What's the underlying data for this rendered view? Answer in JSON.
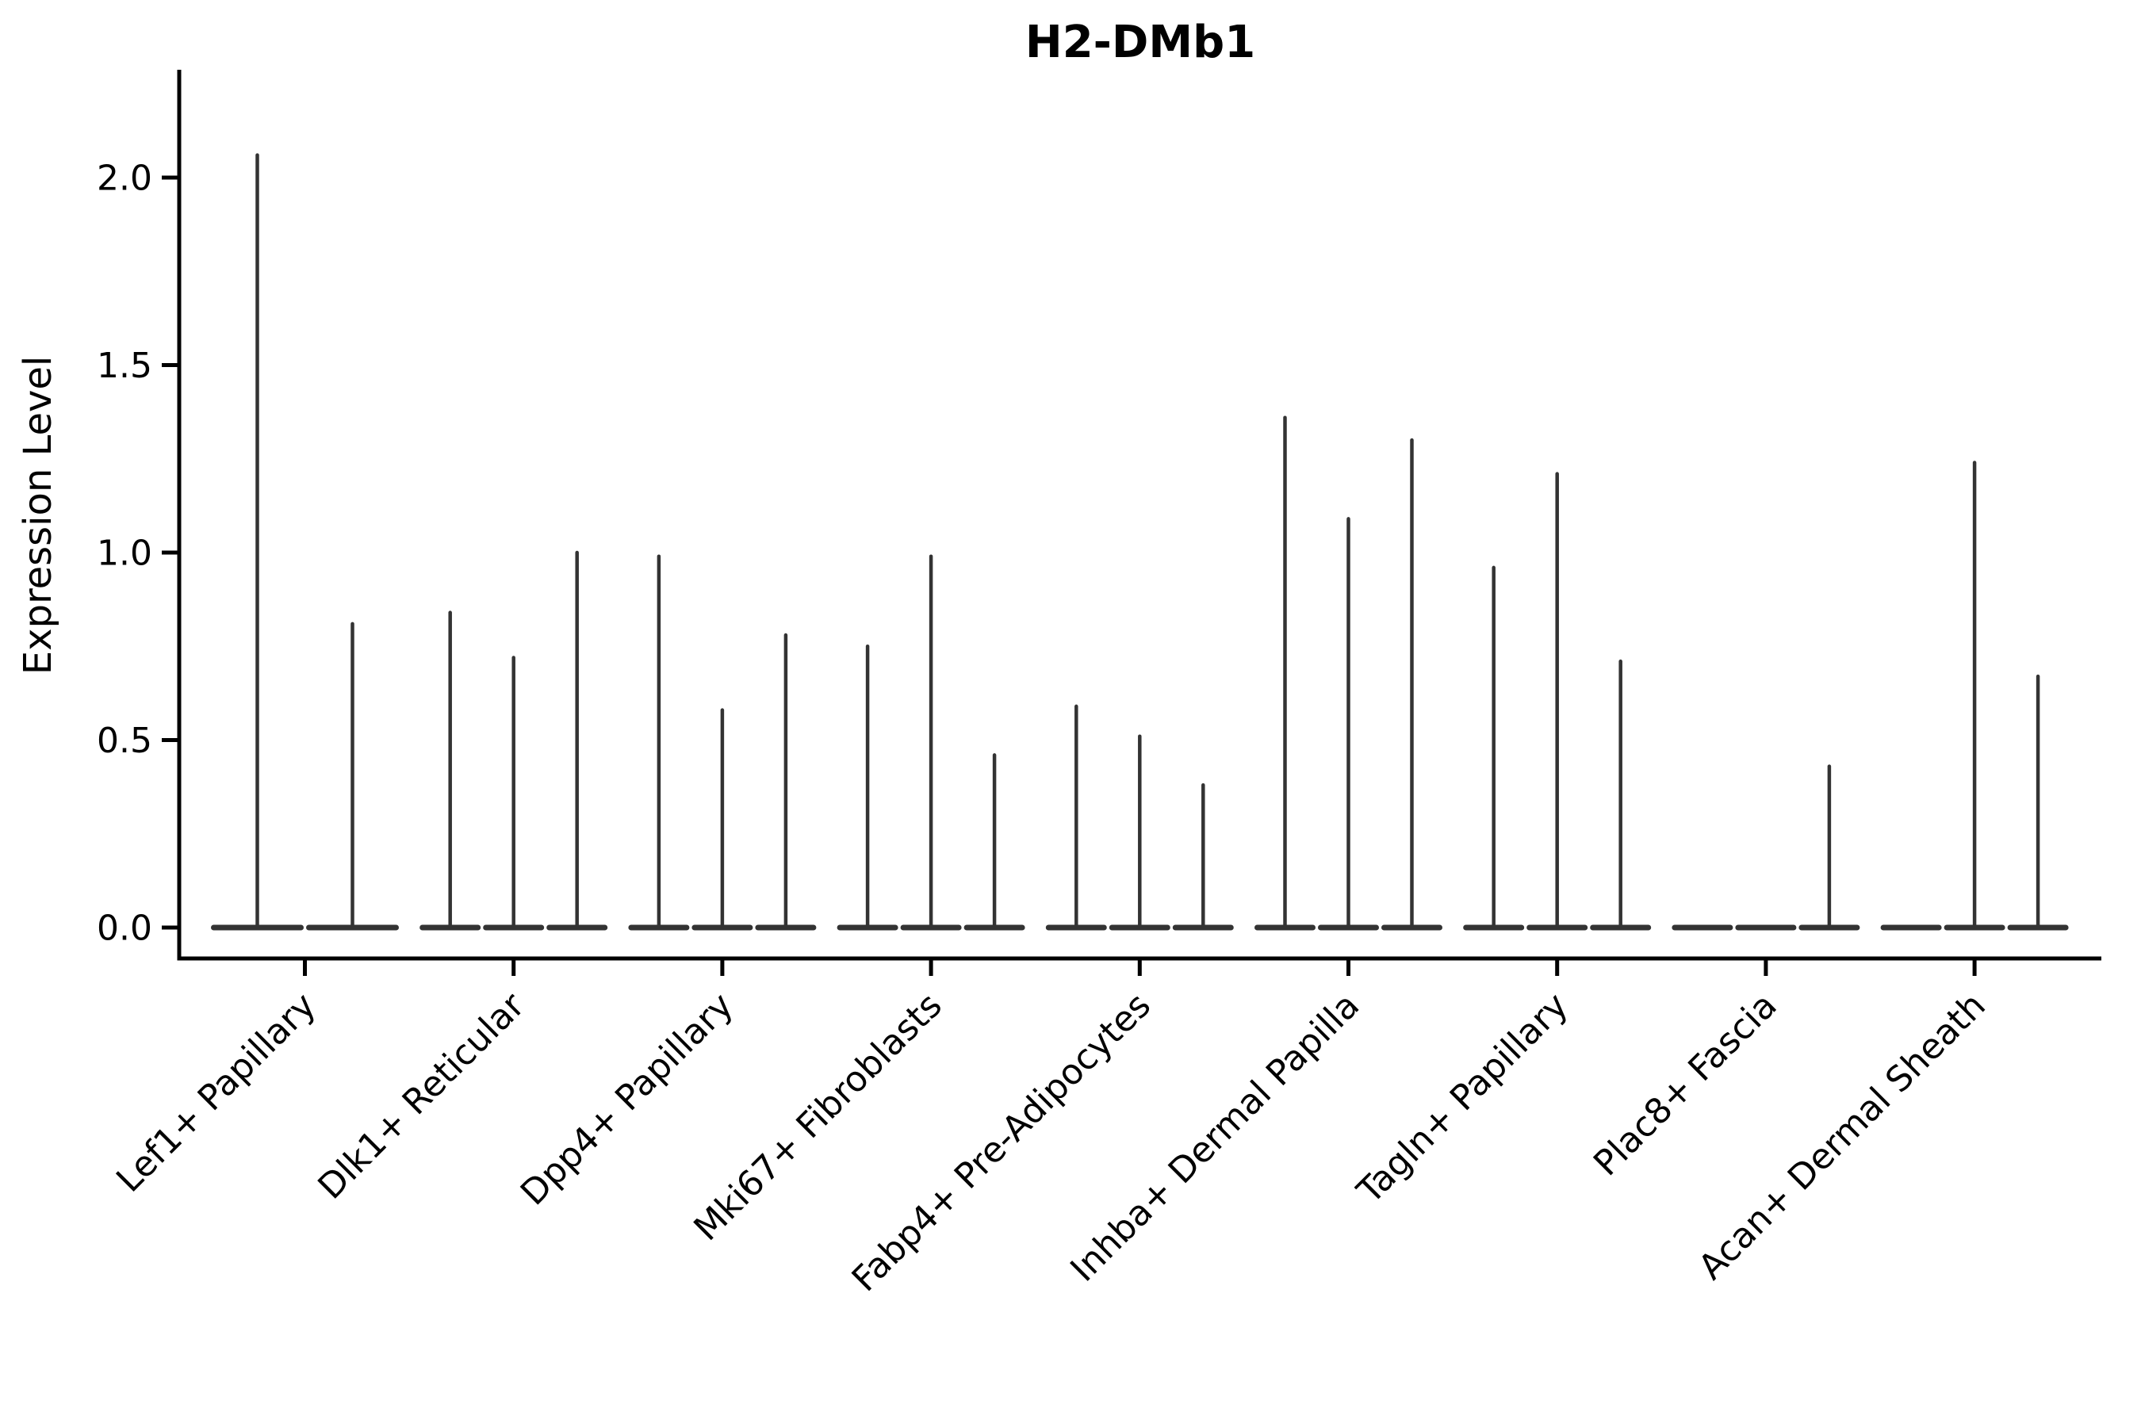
{
  "chart_data": {
    "type": "violin",
    "title": "H2-DMb1",
    "ylabel": "Expression Level",
    "xlabel": "",
    "ytick_labels": [
      "0.0",
      "0.5",
      "1.0",
      "1.5",
      "2.0"
    ],
    "ytick_values": [
      0.0,
      0.5,
      1.0,
      1.5,
      2.0
    ],
    "ylim": [
      -0.08,
      2.29
    ],
    "grid": false,
    "legend_position": "none",
    "categories": [
      "Lef1+ Papillary",
      "Dlk1+ Reticular",
      "Dpp4+ Papillary",
      "Mki67+ Fibroblasts",
      "Fabp4+ Pre-Adipocytes",
      "Inhba+ Dermal Papilla",
      "Tagln+ Papillary",
      "Plac8+ Fascia",
      "Acan+ Dermal Sheath"
    ],
    "groups": [
      {
        "label": "Lef1+ Papillary",
        "violins": [
          2.06,
          0.81
        ]
      },
      {
        "label": "Dlk1+ Reticular",
        "violins": [
          0.84,
          0.72,
          1.0
        ]
      },
      {
        "label": "Dpp4+ Papillary",
        "violins": [
          0.99,
          0.58,
          0.78
        ]
      },
      {
        "label": "Mki67+ Fibroblasts",
        "violins": [
          0.75,
          0.99,
          0.46
        ]
      },
      {
        "label": "Fabp4+ Pre-Adipocytes",
        "violins": [
          0.59,
          0.51,
          0.38
        ]
      },
      {
        "label": "Inhba+ Dermal Papilla",
        "violins": [
          1.36,
          1.09,
          1.3
        ]
      },
      {
        "label": "Tagln+ Papillary",
        "violins": [
          0.96,
          1.21,
          0.71
        ]
      },
      {
        "label": "Plac8+ Fascia",
        "violins": [
          0.0,
          0.0,
          0.43
        ]
      },
      {
        "label": "Acan+ Dermal Sheath",
        "violins": [
          0.0,
          1.24,
          0.67
        ]
      }
    ],
    "violin_shape_note": "Each violin is collapsed flat at expression 0 with a single thin density spike rising to its maximum value",
    "colors": {
      "violin": "#333333",
      "axis": "#000000",
      "text": "#000000",
      "background": "#ffffff"
    }
  }
}
